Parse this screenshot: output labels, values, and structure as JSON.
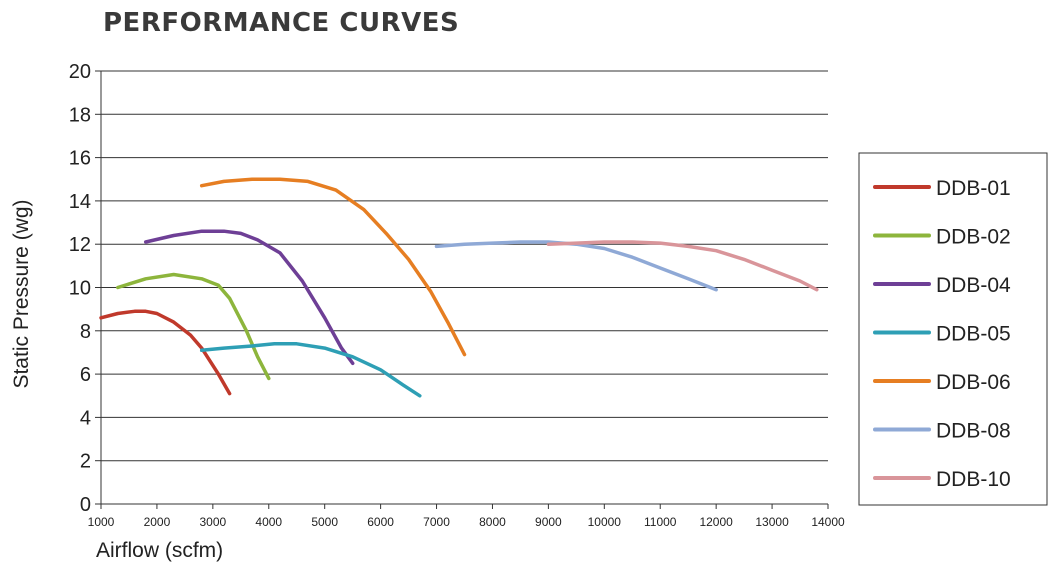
{
  "chart_data": {
    "type": "line",
    "title": "PERFORMANCE CURVES",
    "xlabel": "Airflow (scfm)",
    "ylabel": "Static Pressure (wg)",
    "xlim": [
      1000,
      14000
    ],
    "ylim": [
      0,
      20
    ],
    "x_ticks": [
      1000,
      2000,
      3000,
      4000,
      5000,
      6000,
      7000,
      8000,
      9000,
      10000,
      11000,
      12000,
      13000,
      14000
    ],
    "y_ticks": [
      0,
      2,
      4,
      6,
      8,
      10,
      12,
      14,
      16,
      18,
      20
    ],
    "grid": "horizontal",
    "legend_position": "right",
    "series": [
      {
        "name": "DDB-01",
        "color": "#c0392b",
        "x": [
          1000,
          1300,
          1600,
          1800,
          2000,
          2300,
          2600,
          2800,
          3100,
          3300
        ],
        "y": [
          8.6,
          8.8,
          8.9,
          8.9,
          8.8,
          8.4,
          7.8,
          7.2,
          6.0,
          5.1
        ]
      },
      {
        "name": "DDB-02",
        "color": "#8db53c",
        "x": [
          1300,
          1800,
          2300,
          2800,
          3100,
          3300,
          3600,
          3800,
          4000
        ],
        "y": [
          10.0,
          10.4,
          10.6,
          10.4,
          10.1,
          9.5,
          8.0,
          6.8,
          5.8
        ]
      },
      {
        "name": "DDB-04",
        "color": "#6e3f96",
        "x": [
          1800,
          2300,
          2800,
          3200,
          3500,
          3800,
          4200,
          4600,
          5000,
          5300,
          5500
        ],
        "y": [
          12.1,
          12.4,
          12.6,
          12.6,
          12.5,
          12.2,
          11.6,
          10.3,
          8.6,
          7.2,
          6.5
        ]
      },
      {
        "name": "DDB-05",
        "color": "#2e9fb5",
        "x": [
          2800,
          3200,
          3700,
          4100,
          4500,
          5000,
          5500,
          6000,
          6400,
          6700
        ],
        "y": [
          7.1,
          7.2,
          7.3,
          7.4,
          7.4,
          7.2,
          6.8,
          6.2,
          5.5,
          5.0
        ]
      },
      {
        "name": "DDB-06",
        "color": "#e67e22",
        "x": [
          2800,
          3200,
          3700,
          4200,
          4700,
          5200,
          5700,
          6100,
          6500,
          6900,
          7200,
          7500
        ],
        "y": [
          14.7,
          14.9,
          15.0,
          15.0,
          14.9,
          14.5,
          13.6,
          12.5,
          11.3,
          9.8,
          8.4,
          6.9
        ]
      },
      {
        "name": "DDB-08",
        "color": "#8fa9d6",
        "x": [
          7000,
          7500,
          8000,
          8500,
          9000,
          9500,
          10000,
          10500,
          11000,
          11500,
          12000
        ],
        "y": [
          11.9,
          12.0,
          12.05,
          12.1,
          12.1,
          12.0,
          11.8,
          11.4,
          10.9,
          10.4,
          9.9
        ]
      },
      {
        "name": "DDB-10",
        "color": "#d9959a",
        "x": [
          9000,
          9500,
          10000,
          10500,
          11000,
          11500,
          12000,
          12500,
          13000,
          13500,
          13800
        ],
        "y": [
          12.0,
          12.05,
          12.1,
          12.1,
          12.05,
          11.9,
          11.7,
          11.3,
          10.8,
          10.3,
          9.9
        ]
      }
    ]
  }
}
